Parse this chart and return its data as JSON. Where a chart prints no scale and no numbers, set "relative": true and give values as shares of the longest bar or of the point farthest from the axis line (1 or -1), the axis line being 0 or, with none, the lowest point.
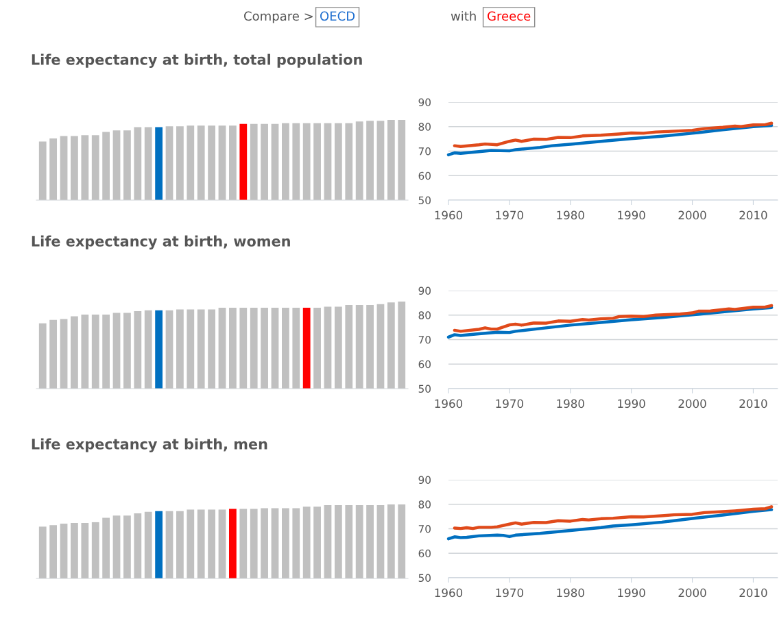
{
  "chart_data": [
    {
      "type": "other",
      "annotations": [
        "Compare >",
        "OECD",
        "with",
        "Greece"
      ],
      "colors": [
        "#555555",
        "#1f6fd0",
        "#555555",
        "#ff0000"
      ]
    },
    {
      "type": "bar",
      "title": "Life expectancy at birth, total population",
      "relative": true,
      "categories": [
        null,
        null,
        null,
        null,
        null,
        null,
        null,
        null,
        null,
        null,
        null,
        null,
        null,
        null,
        null,
        null,
        null,
        null,
        null,
        null,
        null,
        null,
        null,
        null,
        null,
        null,
        null,
        null,
        null,
        null,
        null,
        null,
        null,
        null,
        null
      ],
      "values": [
        0.73,
        0.77,
        0.8,
        0.8,
        0.81,
        0.81,
        0.85,
        0.87,
        0.87,
        0.91,
        0.91,
        0.91,
        0.92,
        0.92,
        0.93,
        0.93,
        0.93,
        0.93,
        0.93,
        0.95,
        0.95,
        0.95,
        0.95,
        0.96,
        0.96,
        0.96,
        0.96,
        0.96,
        0.96,
        0.96,
        0.98,
        0.99,
        0.99,
        1,
        1
      ],
      "colors": [
        "#c0c0c0",
        "#c0c0c0",
        "#c0c0c0",
        "#c0c0c0",
        "#c0c0c0",
        "#c0c0c0",
        "#c0c0c0",
        "#c0c0c0",
        "#c0c0c0",
        "#c0c0c0",
        "#c0c0c0",
        "#0070c0",
        "#c0c0c0",
        "#c0c0c0",
        "#c0c0c0",
        "#c0c0c0",
        "#c0c0c0",
        "#c0c0c0",
        "#c0c0c0",
        "#ff0000",
        "#c0c0c0",
        "#c0c0c0",
        "#c0c0c0",
        "#c0c0c0",
        "#c0c0c0",
        "#c0c0c0",
        "#c0c0c0",
        "#c0c0c0",
        "#c0c0c0",
        "#c0c0c0",
        "#c0c0c0",
        "#c0c0c0",
        "#c0c0c0",
        "#c0c0c0",
        "#c0c0c0"
      ]
    },
    {
      "type": "line",
      "xlim": [
        1960,
        2014
      ],
      "xticks": [
        1960,
        1970,
        1980,
        1990,
        2000,
        2010
      ],
      "ylim": [
        50,
        90
      ],
      "yticks": [
        50,
        60,
        70,
        80,
        90
      ],
      "grid": "y",
      "series": [
        {
          "color": "#0070c0",
          "x": [
            1960,
            1961,
            1962,
            1965,
            1967,
            1970,
            1971,
            1975,
            1977,
            1980,
            1985,
            1990,
            1995,
            2000,
            2005,
            2010,
            2013
          ],
          "values": [
            68.5,
            69.3,
            69.1,
            69.8,
            70.3,
            70.1,
            70.6,
            71.5,
            72.2,
            72.8,
            74.0,
            75.1,
            76.1,
            77.3,
            78.7,
            80.0,
            80.5
          ]
        },
        {
          "color": "#e04a1a",
          "x": [
            1961,
            1962,
            1965,
            1966,
            1968,
            1970,
            1971,
            1972,
            1974,
            1976,
            1978,
            1980,
            1982,
            1985,
            1988,
            1990,
            1992,
            1994,
            1996,
            2000,
            2002,
            2005,
            2007,
            2008,
            2010,
            2012,
            2013
          ],
          "values": [
            72.2,
            71.9,
            72.6,
            72.9,
            72.6,
            74.0,
            74.5,
            74.0,
            74.9,
            74.8,
            75.6,
            75.5,
            76.2,
            76.5,
            77.0,
            77.4,
            77.3,
            77.8,
            78.0,
            78.5,
            79.2,
            79.7,
            80.2,
            80.0,
            80.7,
            80.8,
            81.4
          ]
        }
      ]
    },
    {
      "type": "bar",
      "title": "Life expectancy at birth, women",
      "relative": true,
      "categories": [
        null,
        null,
        null,
        null,
        null,
        null,
        null,
        null,
        null,
        null,
        null,
        null,
        null,
        null,
        null,
        null,
        null,
        null,
        null,
        null,
        null,
        null,
        null,
        null,
        null,
        null,
        null,
        null,
        null,
        null,
        null,
        null,
        null,
        null,
        null
      ],
      "values": [
        0.75,
        0.79,
        0.8,
        0.83,
        0.85,
        0.85,
        0.85,
        0.87,
        0.87,
        0.89,
        0.9,
        0.9,
        0.9,
        0.91,
        0.91,
        0.91,
        0.91,
        0.93,
        0.93,
        0.93,
        0.93,
        0.93,
        0.93,
        0.93,
        0.93,
        0.93,
        0.93,
        0.94,
        0.94,
        0.96,
        0.96,
        0.96,
        0.97,
        0.99,
        1
      ],
      "colors": [
        "#c0c0c0",
        "#c0c0c0",
        "#c0c0c0",
        "#c0c0c0",
        "#c0c0c0",
        "#c0c0c0",
        "#c0c0c0",
        "#c0c0c0",
        "#c0c0c0",
        "#c0c0c0",
        "#c0c0c0",
        "#0070c0",
        "#c0c0c0",
        "#c0c0c0",
        "#c0c0c0",
        "#c0c0c0",
        "#c0c0c0",
        "#c0c0c0",
        "#c0c0c0",
        "#c0c0c0",
        "#c0c0c0",
        "#c0c0c0",
        "#c0c0c0",
        "#c0c0c0",
        "#c0c0c0",
        "#ff0000",
        "#c0c0c0",
        "#c0c0c0",
        "#c0c0c0",
        "#c0c0c0",
        "#c0c0c0",
        "#c0c0c0",
        "#c0c0c0",
        "#c0c0c0",
        "#c0c0c0"
      ]
    },
    {
      "type": "line",
      "xlim": [
        1960,
        2014
      ],
      "xticks": [
        1960,
        1970,
        1980,
        1990,
        2000,
        2010
      ],
      "ylim": [
        50,
        90
      ],
      "yticks": [
        50,
        60,
        70,
        80,
        90
      ],
      "grid": "y",
      "series": [
        {
          "color": "#0070c0",
          "x": [
            1960,
            1961,
            1962,
            1965,
            1968,
            1970,
            1971,
            1975,
            1980,
            1985,
            1990,
            1995,
            2000,
            2005,
            2010,
            2013
          ],
          "values": [
            71.0,
            72.0,
            71.7,
            72.4,
            73.0,
            72.9,
            73.4,
            74.5,
            75.9,
            77.0,
            78.1,
            79.0,
            80.1,
            81.3,
            82.5,
            83.1
          ]
        },
        {
          "color": "#e04a1a",
          "x": [
            1961,
            1962,
            1965,
            1966,
            1967,
            1968,
            1970,
            1971,
            1972,
            1974,
            1976,
            1978,
            1980,
            1982,
            1983,
            1985,
            1987,
            1988,
            1990,
            1992,
            1994,
            1998,
            2000,
            2001,
            2003,
            2006,
            2007,
            2010,
            2012,
            2013
          ],
          "values": [
            73.8,
            73.4,
            74.2,
            74.8,
            74.3,
            74.3,
            76.0,
            76.3,
            75.9,
            76.8,
            76.7,
            77.6,
            77.5,
            78.2,
            78.0,
            78.5,
            78.7,
            79.4,
            79.6,
            79.4,
            80.0,
            80.4,
            80.9,
            81.6,
            81.7,
            82.5,
            82.3,
            83.2,
            83.3,
            83.9
          ]
        }
      ]
    },
    {
      "type": "bar",
      "title": "Life expectancy at birth, men",
      "relative": true,
      "categories": [
        null,
        null,
        null,
        null,
        null,
        null,
        null,
        null,
        null,
        null,
        null,
        null,
        null,
        null,
        null,
        null,
        null,
        null,
        null,
        null,
        null,
        null,
        null,
        null,
        null,
        null,
        null,
        null,
        null,
        null,
        null,
        null,
        null,
        null,
        null
      ],
      "values": [
        0.7,
        0.72,
        0.74,
        0.75,
        0.75,
        0.76,
        0.82,
        0.85,
        0.85,
        0.88,
        0.9,
        0.91,
        0.91,
        0.91,
        0.93,
        0.93,
        0.93,
        0.93,
        0.94,
        0.94,
        0.94,
        0.95,
        0.95,
        0.95,
        0.95,
        0.97,
        0.97,
        0.99,
        0.99,
        0.99,
        0.99,
        0.99,
        0.99,
        1,
        1
      ],
      "colors": [
        "#c0c0c0",
        "#c0c0c0",
        "#c0c0c0",
        "#c0c0c0",
        "#c0c0c0",
        "#c0c0c0",
        "#c0c0c0",
        "#c0c0c0",
        "#c0c0c0",
        "#c0c0c0",
        "#c0c0c0",
        "#0070c0",
        "#c0c0c0",
        "#c0c0c0",
        "#c0c0c0",
        "#c0c0c0",
        "#c0c0c0",
        "#c0c0c0",
        "#ff0000",
        "#c0c0c0",
        "#c0c0c0",
        "#c0c0c0",
        "#c0c0c0",
        "#c0c0c0",
        "#c0c0c0",
        "#c0c0c0",
        "#c0c0c0",
        "#c0c0c0",
        "#c0c0c0",
        "#c0c0c0",
        "#c0c0c0",
        "#c0c0c0",
        "#c0c0c0",
        "#c0c0c0",
        "#c0c0c0"
      ]
    },
    {
      "type": "line",
      "xlim": [
        1960,
        2014
      ],
      "xticks": [
        1960,
        1970,
        1980,
        1990,
        2000,
        2010
      ],
      "ylim": [
        50,
        90
      ],
      "yticks": [
        50,
        60,
        70,
        80,
        90
      ],
      "grid": "y",
      "series": [
        {
          "color": "#0070c0",
          "x": [
            1960,
            1961,
            1962,
            1963,
            1965,
            1968,
            1969,
            1970,
            1971,
            1975,
            1980,
            1985,
            1987,
            1990,
            1995,
            1997,
            2000,
            2005,
            2010,
            2013
          ],
          "values": [
            65.9,
            66.7,
            66.4,
            66.5,
            67.1,
            67.4,
            67.3,
            66.8,
            67.4,
            68.1,
            69.3,
            70.5,
            71.1,
            71.6,
            72.7,
            73.3,
            74.2,
            75.6,
            77.1,
            77.8
          ]
        },
        {
          "color": "#e04a1a",
          "x": [
            1961,
            1962,
            1963,
            1964,
            1965,
            1967,
            1968,
            1970,
            1971,
            1972,
            1974,
            1976,
            1978,
            1980,
            1982,
            1983,
            1985,
            1987,
            1990,
            1992,
            1995,
            1997,
            2000,
            2002,
            2005,
            2007,
            2008,
            2010,
            2012,
            2013
          ],
          "values": [
            70.3,
            70.1,
            70.4,
            70.1,
            70.6,
            70.6,
            70.8,
            71.9,
            72.4,
            71.9,
            72.6,
            72.5,
            73.3,
            73.1,
            73.8,
            73.6,
            74.1,
            74.3,
            74.9,
            74.8,
            75.3,
            75.7,
            75.9,
            76.6,
            77.0,
            77.3,
            77.5,
            78.0,
            78.2,
            79.0
          ]
        }
      ]
    }
  ]
}
